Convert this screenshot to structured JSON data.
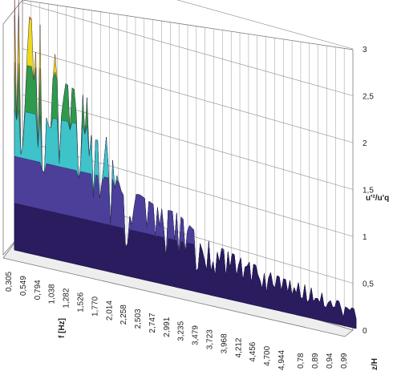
{
  "chart_data": {
    "type": "surface3d",
    "title": "",
    "xlabel": "f [Hz]",
    "ylabel": "z/H",
    "zlabel": "u'²/u'q",
    "x_ticks": [
      "0,305",
      "0,549",
      "0,794",
      "1,038",
      "1,282",
      "1,526",
      "1,770",
      "2,014",
      "2,258",
      "2,503",
      "2,747",
      "2,991",
      "3,235",
      "3,479",
      "3,723",
      "3,968",
      "4,212",
      "4,456",
      "4,700",
      "4,944"
    ],
    "y_ticks": [
      "0,78",
      "0,89",
      "0,94",
      "0,99"
    ],
    "z_ticks": [
      "0",
      "0,5",
      "1",
      "1,5",
      "2",
      "2,5",
      "3"
    ],
    "zlim": [
      0,
      3
    ],
    "color_bands": [
      {
        "range": [
          0,
          0.5
        ],
        "color": "#2a1c5e"
      },
      {
        "range": [
          0.5,
          1
        ],
        "color": "#4b3f9a"
      },
      {
        "range": [
          1,
          1.5
        ],
        "color": "#3ec3c9"
      },
      {
        "range": [
          1.5,
          2
        ],
        "color": "#2f9a4c"
      },
      {
        "range": [
          2,
          2.5
        ],
        "color": "#ecd81c"
      },
      {
        "range": [
          2.5,
          3
        ],
        "color": "#e07a1c"
      }
    ],
    "peak_envelope": [
      {
        "f": 0.305,
        "value": 2.9
      },
      {
        "f": 0.4,
        "value": 2.6
      },
      {
        "f": 0.55,
        "value": 2.5
      },
      {
        "f": 0.7,
        "value": 2.45
      },
      {
        "f": 0.85,
        "value": 2.2
      },
      {
        "f": 1.0,
        "value": 1.9
      },
      {
        "f": 1.15,
        "value": 1.85
      },
      {
        "f": 1.3,
        "value": 1.8
      },
      {
        "f": 1.45,
        "value": 1.7
      },
      {
        "f": 1.6,
        "value": 1.3
      },
      {
        "f": 1.77,
        "value": 0.85
      },
      {
        "f": 2.0,
        "value": 0.9
      },
      {
        "f": 2.26,
        "value": 0.8
      },
      {
        "f": 2.5,
        "value": 0.8
      },
      {
        "f": 2.75,
        "value": 0.65
      },
      {
        "f": 3.0,
        "value": 0.55
      },
      {
        "f": 3.24,
        "value": 0.5
      },
      {
        "f": 3.48,
        "value": 0.45
      },
      {
        "f": 3.72,
        "value": 0.4
      },
      {
        "f": 3.97,
        "value": 0.35
      },
      {
        "f": 4.21,
        "value": 0.35
      },
      {
        "f": 4.46,
        "value": 0.3
      },
      {
        "f": 4.7,
        "value": 0.25
      },
      {
        "f": 4.94,
        "value": 0.2
      }
    ]
  }
}
